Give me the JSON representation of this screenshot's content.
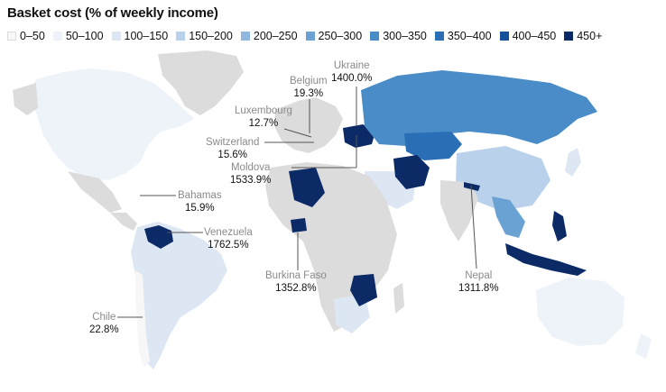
{
  "title": "Basket cost (% of weekly income)",
  "legend": [
    {
      "label": "0–50",
      "color": "#f7f7f7"
    },
    {
      "label": "50–100",
      "color": "#eef3f9"
    },
    {
      "label": "100–150",
      "color": "#dce7f3"
    },
    {
      "label": "150–200",
      "color": "#b9d1ea"
    },
    {
      "label": "200–250",
      "color": "#8fb8de"
    },
    {
      "label": "250–300",
      "color": "#6aa2d3"
    },
    {
      "label": "300–350",
      "color": "#4a8cc7"
    },
    {
      "label": "350–400",
      "color": "#2a6fb5"
    },
    {
      "label": "400–450",
      "color": "#17509a"
    },
    {
      "label": "450+",
      "color": "#0b2a66"
    }
  ],
  "annotations": [
    {
      "name": "Ukraine",
      "value": "1400.0%"
    },
    {
      "name": "Belgium",
      "value": "19.3%"
    },
    {
      "name": "Luxembourg",
      "value": "12.7%"
    },
    {
      "name": "Switzerland",
      "value": "15.6%"
    },
    {
      "name": "Moldova",
      "value": "1533.9%"
    },
    {
      "name": "Bahamas",
      "value": "15.9%"
    },
    {
      "name": "Venezuela",
      "value": "1762.5%"
    },
    {
      "name": "Burkina Faso",
      "value": "1352.8%"
    },
    {
      "name": "Nepal",
      "value": "1311.8%"
    },
    {
      "name": "Chile",
      "value": "22.8%"
    }
  ]
}
